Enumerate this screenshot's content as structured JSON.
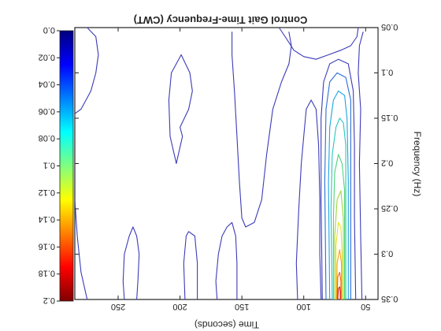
{
  "chart_data": {
    "type": "heatmap",
    "subtype": "contour",
    "title": "Control Gait Time-Frequency (CWT)",
    "xlabel": "Time (seconds)",
    "ylabel": "Frequency (Hz)",
    "orientation": "rotated 180 degrees (image mirrored/upside-down)",
    "xlim": [
      40,
      285
    ],
    "ylim": [
      0.05,
      0.35
    ],
    "xticks": [
      50,
      100,
      150,
      200,
      250
    ],
    "yticks": [
      0.05,
      0.1,
      0.15,
      0.2,
      0.25,
      0.3,
      0.35
    ],
    "xtick_labels": [
      "50",
      "100",
      "150",
      "200",
      "250"
    ],
    "ytick_labels": [
      "0.05",
      "0.1",
      "0.15",
      "0.2",
      "0.25",
      "0.3",
      "0.35"
    ],
    "colorbar": {
      "range": [
        0,
        0.2
      ],
      "ticks": [
        0.0,
        0.02,
        0.04,
        0.06,
        0.08,
        0.1,
        0.12,
        0.14,
        0.16,
        0.18,
        0.2
      ],
      "tick_labels": [
        "0.0",
        "0.02",
        "0.04",
        "0.06",
        "0.08",
        "0.1",
        "0.12",
        "0.14",
        "0.16",
        "0.18",
        "0.2"
      ],
      "colormap": "jet"
    },
    "hotspot": {
      "x": 70,
      "y_min": 0.05,
      "y_max": 0.35,
      "peak_value": 0.2,
      "peak_y": 0.35
    },
    "contours": [
      {
        "level": 0.01,
        "color": "#3b3bb8",
        "points": [
          [
            40,
            0.05
          ],
          [
            40,
            0.35
          ]
        ]
      },
      {
        "level": 0.01,
        "color": "#3b3bb8",
        "points": [
          [
            275,
            0.35
          ],
          [
            280,
            0.32
          ],
          [
            283,
            0.28
          ],
          [
            285,
            0.24
          ]
        ]
      },
      {
        "level": 0.01,
        "color": "#3b3bb8",
        "points": [
          [
            285,
            0.145
          ],
          [
            280,
            0.14
          ],
          [
            272,
            0.12
          ],
          [
            268,
            0.1
          ],
          [
            266,
            0.08
          ],
          [
            268,
            0.06
          ],
          [
            275,
            0.05
          ]
        ]
      },
      {
        "level": 0.01,
        "color": "#3b3bb8",
        "points": [
          [
            245,
            0.35
          ],
          [
            246,
            0.33
          ],
          [
            245,
            0.3
          ],
          [
            241,
            0.28
          ],
          [
            238,
            0.27
          ],
          [
            235,
            0.28
          ],
          [
            233,
            0.3
          ],
          [
            234,
            0.33
          ],
          [
            235,
            0.35
          ]
        ]
      },
      {
        "level": 0.01,
        "color": "#3b3bb8",
        "points": [
          [
            196,
            0.35
          ],
          [
            197,
            0.31
          ],
          [
            195,
            0.28
          ],
          [
            193,
            0.275
          ],
          [
            188,
            0.28
          ],
          [
            186,
            0.31
          ],
          [
            186,
            0.35
          ]
        ]
      },
      {
        "level": 0.01,
        "color": "#3b3bb8",
        "points": [
          [
            170,
            0.35
          ],
          [
            171,
            0.33
          ],
          [
            169,
            0.3
          ],
          [
            166,
            0.28
          ],
          [
            162,
            0.27
          ],
          [
            158,
            0.265
          ],
          [
            155,
            0.28
          ],
          [
            154,
            0.31
          ],
          [
            154,
            0.35
          ]
        ]
      },
      {
        "level": 0.01,
        "color": "#3b3bb8",
        "points": [
          [
            158,
            0.055
          ],
          [
            158,
            0.08
          ],
          [
            156,
            0.12
          ],
          [
            154,
            0.17
          ],
          [
            152,
            0.22
          ],
          [
            150,
            0.26
          ],
          [
            147,
            0.27
          ],
          [
            140,
            0.265
          ],
          [
            134,
            0.24
          ],
          [
            130,
            0.19
          ],
          [
            125,
            0.14
          ],
          [
            118,
            0.11
          ],
          [
            112,
            0.09
          ],
          [
            110,
            0.07
          ],
          [
            112,
            0.055
          ]
        ]
      },
      {
        "level": 0.01,
        "color": "#3b3bb8",
        "points": [
          [
            200,
            0.16
          ],
          [
            193,
            0.14
          ],
          [
            190,
            0.12
          ],
          [
            192,
            0.1
          ],
          [
            199,
            0.08
          ],
          [
            207,
            0.1
          ],
          [
            209,
            0.13
          ],
          [
            208,
            0.17
          ],
          [
            203,
            0.2
          ],
          [
            198,
            0.17
          ],
          [
            200,
            0.16
          ]
        ]
      },
      {
        "level": 0.01,
        "color": "#3b3bb8",
        "points": [
          [
            105,
            0.35
          ],
          [
            106,
            0.31
          ],
          [
            104,
            0.25
          ],
          [
            102,
            0.2
          ],
          [
            100,
            0.17
          ],
          [
            98,
            0.14
          ],
          [
            94,
            0.13
          ],
          [
            90,
            0.14
          ],
          [
            88,
            0.18
          ],
          [
            87,
            0.24
          ],
          [
            87,
            0.3
          ],
          [
            86,
            0.35
          ]
        ]
      },
      {
        "level": 0.01,
        "color": "#3b3bb8",
        "points": [
          [
            53,
            0.35
          ],
          [
            54,
            0.28
          ],
          [
            55,
            0.2
          ],
          [
            54,
            0.14
          ],
          [
            56,
            0.1
          ],
          [
            55,
            0.07
          ],
          [
            52,
            0.055
          ]
        ]
      },
      {
        "level": 0.01,
        "color": "#3b3bb8",
        "points": [
          [
            120,
            0.05
          ],
          [
            115,
            0.06
          ],
          [
            108,
            0.075
          ],
          [
            100,
            0.082
          ],
          [
            90,
            0.085
          ],
          [
            80,
            0.08
          ],
          [
            70,
            0.075
          ],
          [
            62,
            0.07
          ],
          [
            57,
            0.06
          ],
          [
            56,
            0.05
          ]
        ]
      },
      {
        "level": 0.02,
        "color": "#3b3bb8",
        "points": [
          [
            85,
            0.35
          ],
          [
            86,
            0.24
          ],
          [
            86,
            0.15
          ],
          [
            84,
            0.11
          ],
          [
            79,
            0.09
          ],
          [
            72,
            0.085
          ],
          [
            64,
            0.09
          ],
          [
            60,
            0.12
          ],
          [
            59,
            0.18
          ],
          [
            59,
            0.26
          ],
          [
            58,
            0.35
          ]
        ]
      },
      {
        "level": 0.03,
        "color": "#2a6fd6",
        "points": [
          [
            82,
            0.35
          ],
          [
            83,
            0.22
          ],
          [
            82,
            0.14
          ],
          [
            79,
            0.11
          ],
          [
            73,
            0.1
          ],
          [
            66,
            0.105
          ],
          [
            62,
            0.13
          ],
          [
            62,
            0.22
          ],
          [
            62,
            0.35
          ]
        ]
      },
      {
        "level": 0.05,
        "color": "#1fa3e0",
        "points": [
          [
            79,
            0.35
          ],
          [
            80,
            0.22
          ],
          [
            79,
            0.16
          ],
          [
            76,
            0.13
          ],
          [
            72,
            0.12
          ],
          [
            67,
            0.125
          ],
          [
            65,
            0.15
          ],
          [
            64,
            0.22
          ],
          [
            64,
            0.35
          ]
        ]
      },
      {
        "level": 0.07,
        "color": "#28c8c0",
        "points": [
          [
            77,
            0.35
          ],
          [
            78,
            0.25
          ],
          [
            77,
            0.19
          ],
          [
            74,
            0.16
          ],
          [
            71,
            0.15
          ],
          [
            68,
            0.155
          ],
          [
            66,
            0.18
          ],
          [
            66,
            0.25
          ],
          [
            66,
            0.35
          ]
        ]
      },
      {
        "level": 0.09,
        "color": "#4fd27a",
        "points": [
          [
            76,
            0.35
          ],
          [
            76,
            0.26
          ],
          [
            75,
            0.21
          ],
          [
            72,
            0.19
          ],
          [
            69,
            0.2
          ],
          [
            67,
            0.23
          ],
          [
            67,
            0.35
          ]
        ]
      },
      {
        "level": 0.11,
        "color": "#9fd83a",
        "points": [
          [
            75,
            0.35
          ],
          [
            75,
            0.28
          ],
          [
            73,
            0.24
          ],
          [
            70,
            0.23
          ],
          [
            68,
            0.26
          ],
          [
            68,
            0.35
          ]
        ]
      },
      {
        "level": 0.13,
        "color": "#e6df25",
        "points": [
          [
            74,
            0.35
          ],
          [
            74,
            0.29
          ],
          [
            72,
            0.265
          ],
          [
            70,
            0.27
          ],
          [
            69,
            0.3
          ],
          [
            69,
            0.35
          ]
        ]
      },
      {
        "level": 0.15,
        "color": "#f5a41d",
        "points": [
          [
            73.5,
            0.35
          ],
          [
            73,
            0.31
          ],
          [
            71,
            0.295
          ],
          [
            69.5,
            0.31
          ],
          [
            69.5,
            0.35
          ]
        ]
      },
      {
        "level": 0.17,
        "color": "#f06418",
        "points": [
          [
            73,
            0.35
          ],
          [
            72.5,
            0.325
          ],
          [
            71,
            0.32
          ],
          [
            70,
            0.33
          ],
          [
            70,
            0.35
          ]
        ]
      },
      {
        "level": 0.19,
        "color": "#d6181c",
        "points": [
          [
            72.5,
            0.35
          ],
          [
            72,
            0.338
          ],
          [
            71,
            0.336
          ],
          [
            70.5,
            0.342
          ],
          [
            70.5,
            0.35
          ]
        ]
      }
    ]
  }
}
